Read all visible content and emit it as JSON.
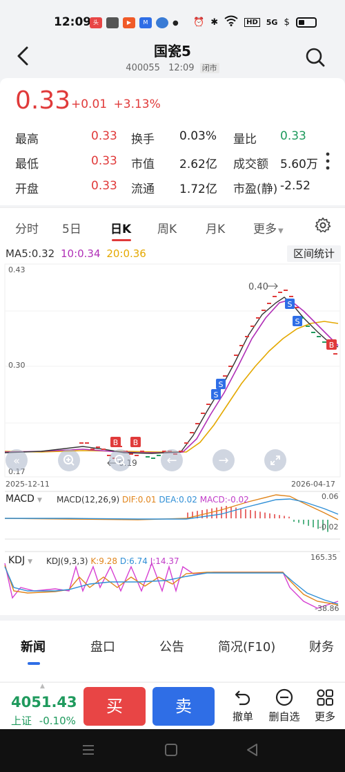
{
  "status": {
    "time": "12:09",
    "network": "5G",
    "hd": "HD",
    "battery_pct": 0.25
  },
  "header": {
    "title": "国瓷5",
    "code": "400055",
    "time": "12:09",
    "market_state": "闭市"
  },
  "quote": {
    "price": "0.33",
    "change_abs": "+0.01",
    "change_pct": "+3.13%",
    "stats": [
      {
        "label": "最高",
        "value": "0.33",
        "color": "red"
      },
      {
        "label": "换手",
        "value": "0.03%",
        "color": "dark"
      },
      {
        "label": "量比",
        "value": "0.33",
        "color": "green"
      },
      {
        "label": "最低",
        "value": "0.33",
        "color": "red"
      },
      {
        "label": "市值",
        "value": "2.62亿",
        "color": "dark"
      },
      {
        "label": "成交额",
        "value": "5.60万",
        "color": "dark"
      },
      {
        "label": "开盘",
        "value": "0.33",
        "color": "red"
      },
      {
        "label": "流通",
        "value": "1.72亿",
        "color": "dark"
      },
      {
        "label": "市盈(静)",
        "value": "-2.52",
        "color": "dark"
      }
    ]
  },
  "tabs": [
    "分时",
    "5日",
    "日K",
    "周K",
    "月K",
    "更多"
  ],
  "active_tab": "日K",
  "chart": {
    "ma_legend": {
      "ma5": "MA5:0.32",
      "ma10": "10:0.34",
      "ma20": "20:0.36"
    },
    "range_label": "区间统计",
    "y_high": "0.43",
    "y_mid": "0.30",
    "y_low": "0.17",
    "date_start": "2025-12-11",
    "date_end": "2026-04-17",
    "max_annot": "0.40",
    "min_annot": "0.19",
    "macd_name": "MACD",
    "macd_params": "MACD(12,26,9)",
    "dif": "DIF:0.01",
    "dea": "DEA:0.02",
    "macd_val": "MACD:-0.02",
    "macd_top": "0.06",
    "macd_bottom": "-0.02",
    "kdj_name": "KDJ",
    "kdj_params": "KDJ(9,3,3)",
    "k_val": "K:9.28",
    "d_val": "D:6.74",
    "j_val": "J:14.37",
    "kdj_top": "165.35",
    "kdj_bottom": "-38.86",
    "colors": {
      "ma5": "#333333",
      "ma10": "#b02fb7",
      "ma20": "#e4a800",
      "up": "#e03a3a",
      "down": "#1f9a5d",
      "dif": "#e0841a",
      "dea": "#2f8fd6",
      "macd": "#c13cc8"
    }
  },
  "chart_data": {
    "type": "line",
    "title": "",
    "x": [
      "2025-12-11",
      "2026-04-17"
    ],
    "ylim": [
      0.17,
      0.43
    ],
    "series": [
      {
        "name": "MA5",
        "last": 0.32
      },
      {
        "name": "MA10",
        "last": 0.34
      },
      {
        "name": "MA20",
        "last": 0.36
      }
    ],
    "annotations": [
      {
        "text": "0.40"
      },
      {
        "text": "0.19"
      }
    ]
  },
  "news_tabs": [
    "新闻",
    "盘口",
    "公告",
    "简况(F10)",
    "财务"
  ],
  "bottom": {
    "index_value": "4051.43",
    "index_name": "上证",
    "index_change": "-0.10%",
    "buy": "买",
    "sell": "卖",
    "actions": [
      "撤单",
      "删自选",
      "更多"
    ]
  }
}
